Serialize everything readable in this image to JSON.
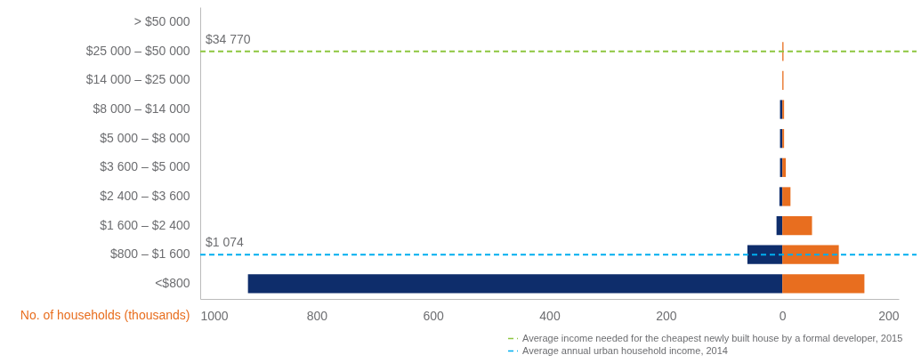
{
  "chart_data": {
    "type": "bar",
    "orientation": "horizontal",
    "xlabel": "No. of households (thousands)",
    "categories": [
      "> $50 000",
      "$25 000 – $50 000",
      "$14 000 – $25 000",
      "$8 000 – $14 000",
      "$5 000 – $8 000",
      "$3 600 – $5 000",
      "$2 400 – $3 600",
      "$1 600 – $2 400",
      "$800 – $1 600",
      "<$800"
    ],
    "series": [
      {
        "color": "#0e2d6b",
        "values": [
          0,
          0,
          0,
          -4,
          -4,
          -4,
          -5,
          -10,
          -60,
          -918
        ]
      },
      {
        "color": "#e86e1f",
        "values": [
          0,
          2,
          2,
          3,
          3,
          6,
          14,
          51,
          97,
          141
        ]
      }
    ],
    "xlim": [
      -1000,
      200
    ],
    "xticks": [
      {
        "value": -1000,
        "label": "1000"
      },
      {
        "value": -800,
        "label": "800"
      },
      {
        "value": -600,
        "label": "600"
      },
      {
        "value": -400,
        "label": "400"
      },
      {
        "value": -200,
        "label": "200"
      },
      0,
      200
    ],
    "ref_lines": [
      {
        "axis": "y",
        "value": "$25 000 – $50 000",
        "label": "Average income needed for the cheapest newly built house by a formal developer, 2015",
        "color": "#8dc63f",
        "line_style": "dashed"
      },
      {
        "axis": "y",
        "value": "$800 – $1 600",
        "label": "Average annual urban household income, 2014",
        "color": "#00aeef",
        "line_style": "dashed"
      }
    ],
    "annotations": [
      {
        "text": "$34 770",
        "y": "$25 000 – $50 000"
      },
      {
        "text": "$1 074",
        "y": "$800 – $1 600"
      }
    ],
    "legend": "bottom right",
    "grid": false,
    "stacked": true
  }
}
